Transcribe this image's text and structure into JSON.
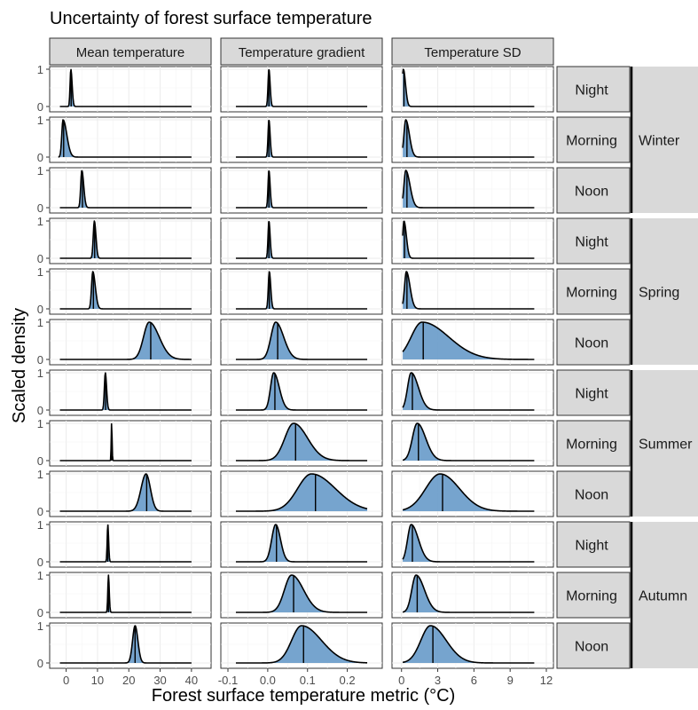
{
  "chart_data": {
    "type": "area",
    "subtype": "faceted density (ridgeline grid)",
    "title": "Uncertainty of forest surface temperature",
    "xlabel": "Forest surface temperature metric (°C)",
    "ylabel": "Scaled density",
    "grid": true,
    "fill_color": "#6f9fcb",
    "line_color": "#000000",
    "strip_fill": "#d9d9d9",
    "columns": [
      {
        "label": "Mean temperature",
        "xlim": [
          -3,
          44
        ],
        "ticks": [
          0,
          10,
          20,
          30,
          40
        ],
        "tick_labels": [
          "0",
          "10",
          "20",
          "30",
          "40"
        ]
      },
      {
        "label": "Temperature gradient",
        "xlim": [
          -0.1,
          0.27
        ],
        "ticks": [
          -0.1,
          0.0,
          0.1,
          0.2
        ],
        "tick_labels": [
          "-0.1",
          "0.0",
          "0.1",
          "0.2"
        ]
      },
      {
        "label": "Temperature SD",
        "xlim": [
          -0.2,
          12
        ],
        "ticks": [
          0,
          3,
          6,
          9,
          12
        ],
        "tick_labels": [
          "0",
          "3",
          "6",
          "9",
          "12"
        ]
      }
    ],
    "y_ticks": [
      "0",
      "1"
    ],
    "seasons": [
      {
        "label": "Winter",
        "times": [
          {
            "label": "Night",
            "panels": [
              {
                "support": [
                  -2,
                  40
                ],
                "mode": 1.5,
                "sl": 0.25,
                "sr": 0.4,
                "mid": 1.6
              },
              {
                "support": [
                  -0.08,
                  0.25
                ],
                "mode": 0.003,
                "sl": 0.0022,
                "sr": 0.003,
                "mid": 0.003
              },
              {
                "support": [
                  0.1,
                  11
                ],
                "mode": 0.15,
                "sl": 0.1,
                "sr": 0.18,
                "mid": 0.2
              }
            ]
          },
          {
            "label": "Morning",
            "panels": [
              {
                "support": [
                  -2.5,
                  40
                ],
                "mode": -1,
                "sl": 0.4,
                "sr": 1.2,
                "mid": -0.8
              },
              {
                "support": [
                  -0.08,
                  0.25
                ],
                "mode": 0.003,
                "sl": 0.0022,
                "sr": 0.003,
                "mid": 0.003
              },
              {
                "support": [
                  0.1,
                  11
                ],
                "mode": 0.35,
                "sl": 0.15,
                "sr": 0.3,
                "mid": 0.45
              }
            ]
          },
          {
            "label": "Noon",
            "panels": [
              {
                "support": [
                  -2,
                  40
                ],
                "mode": 5,
                "sl": 0.35,
                "sr": 0.6,
                "mid": 5.2
              },
              {
                "support": [
                  -0.08,
                  0.25
                ],
                "mode": 0.003,
                "sl": 0.0022,
                "sr": 0.003,
                "mid": 0.003
              },
              {
                "support": [
                  0.1,
                  11
                ],
                "mode": 0.35,
                "sl": 0.15,
                "sr": 0.35,
                "mid": 0.45
              }
            ]
          }
        ]
      },
      {
        "label": "Spring",
        "times": [
          {
            "label": "Night",
            "panels": [
              {
                "support": [
                  -2,
                  40
                ],
                "mode": 9,
                "sl": 0.35,
                "sr": 0.5,
                "mid": 9.1
              },
              {
                "support": [
                  -0.08,
                  0.25
                ],
                "mode": 0.003,
                "sl": 0.0022,
                "sr": 0.003,
                "mid": 0.003
              },
              {
                "support": [
                  0.1,
                  11
                ],
                "mode": 0.2,
                "sl": 0.1,
                "sr": 0.2,
                "mid": 0.25
              }
            ]
          },
          {
            "label": "Morning",
            "panels": [
              {
                "support": [
                  -2,
                  40
                ],
                "mode": 8.5,
                "sl": 0.4,
                "sr": 0.8,
                "mid": 8.7
              },
              {
                "support": [
                  -0.08,
                  0.25
                ],
                "mode": 0.004,
                "sl": 0.0025,
                "sr": 0.0035,
                "mid": 0.004
              },
              {
                "support": [
                  0.1,
                  11
                ],
                "mode": 0.4,
                "sl": 0.15,
                "sr": 0.3,
                "mid": 0.45
              }
            ]
          },
          {
            "label": "Noon",
            "panels": [
              {
                "support": [
                  -2,
                  40
                ],
                "mode": 26.5,
                "sl": 1.8,
                "sr": 3.2,
                "mid": 27
              },
              {
                "support": [
                  -0.08,
                  0.25
                ],
                "mode": 0.02,
                "sl": 0.012,
                "sr": 0.02,
                "mid": 0.025
              },
              {
                "support": [
                  0.1,
                  11
                ],
                "mode": 1.7,
                "sl": 0.9,
                "sr": 2.2,
                "mid": 1.8
              }
            ]
          }
        ]
      },
      {
        "label": "Summer",
        "times": [
          {
            "label": "Night",
            "panels": [
              {
                "support": [
                  -2,
                  40
                ],
                "mode": 12.5,
                "sl": 0.3,
                "sr": 0.4,
                "mid": 12.6
              },
              {
                "support": [
                  -0.08,
                  0.25
                ],
                "mode": 0.015,
                "sl": 0.008,
                "sr": 0.014,
                "mid": 0.018
              },
              {
                "support": [
                  0.1,
                  11
                ],
                "mode": 0.8,
                "sl": 0.3,
                "sr": 0.6,
                "mid": 0.9
              }
            ]
          },
          {
            "label": "Morning",
            "panels": [
              {
                "support": [
                  -2,
                  40
                ],
                "mode": 14.5,
                "sl": 0.12,
                "sr": 0.15,
                "mid": 14.5
              },
              {
                "support": [
                  -0.08,
                  0.25
                ],
                "mode": 0.065,
                "sl": 0.022,
                "sr": 0.035,
                "mid": 0.07
              },
              {
                "support": [
                  0.1,
                  11
                ],
                "mode": 1.3,
                "sl": 0.4,
                "sr": 0.7,
                "mid": 1.4
              }
            ]
          },
          {
            "label": "Noon",
            "panels": [
              {
                "support": [
                  -2,
                  40
                ],
                "mode": 25.5,
                "sl": 1.6,
                "sr": 1.4,
                "mid": 25.7
              },
              {
                "support": [
                  -0.08,
                  0.25
                ],
                "mode": 0.11,
                "sl": 0.035,
                "sr": 0.06,
                "mid": 0.12
              },
              {
                "support": [
                  0.1,
                  11
                ],
                "mode": 3.2,
                "sl": 1.2,
                "sr": 1.6,
                "mid": 3.4
              }
            ]
          }
        ]
      },
      {
        "label": "Autumn",
        "times": [
          {
            "label": "Night",
            "panels": [
              {
                "support": [
                  -2,
                  40
                ],
                "mode": 13.3,
                "sl": 0.2,
                "sr": 0.25,
                "mid": 13.3
              },
              {
                "support": [
                  -0.08,
                  0.25
                ],
                "mode": 0.02,
                "sl": 0.01,
                "sr": 0.012,
                "mid": 0.022
              },
              {
                "support": [
                  0.1,
                  11
                ],
                "mode": 0.8,
                "sl": 0.3,
                "sr": 0.6,
                "mid": 0.9
              }
            ]
          },
          {
            "label": "Morning",
            "panels": [
              {
                "support": [
                  -2,
                  40
                ],
                "mode": 13.5,
                "sl": 0.2,
                "sr": 0.25,
                "mid": 13.5
              },
              {
                "support": [
                  -0.08,
                  0.25
                ],
                "mode": 0.06,
                "sl": 0.018,
                "sr": 0.03,
                "mid": 0.065
              },
              {
                "support": [
                  0.1,
                  11
                ],
                "mode": 1.2,
                "sl": 0.35,
                "sr": 0.7,
                "mid": 1.3
              }
            ]
          },
          {
            "label": "Noon",
            "panels": [
              {
                "support": [
                  -2,
                  40
                ],
                "mode": 22,
                "sl": 0.8,
                "sr": 0.9,
                "mid": 22
              },
              {
                "support": [
                  -0.08,
                  0.25
                ],
                "mode": 0.085,
                "sl": 0.025,
                "sr": 0.05,
                "mid": 0.09
              },
              {
                "support": [
                  0.1,
                  11
                ],
                "mode": 2.4,
                "sl": 0.8,
                "sr": 1.3,
                "mid": 2.6
              }
            ]
          }
        ]
      }
    ]
  }
}
